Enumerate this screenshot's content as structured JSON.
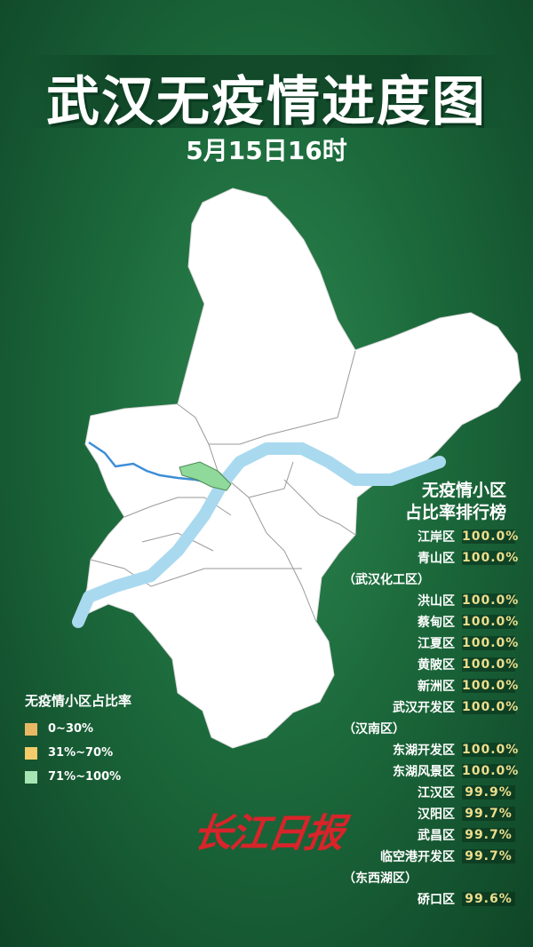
{
  "header": {
    "title": "武汉无疫情进度图",
    "date": "5月15日16时"
  },
  "colors": {
    "background": "#1c6a3c",
    "river": "#a9d9ef",
    "map_fill": "#ffffff",
    "highlight": "#8fd99a",
    "value_text": "#ecde8c",
    "logo": "#d8242a"
  },
  "ranking": {
    "title_line1": "无疫情小区",
    "title_line2": "占比率排行榜",
    "rows": [
      {
        "name": "江岸区",
        "value": "100.0%"
      },
      {
        "name": "青山区",
        "value": "100.0%"
      },
      {
        "name": "（武汉化工区）",
        "value": ""
      },
      {
        "name": "洪山区",
        "value": "100.0%"
      },
      {
        "name": "蔡甸区",
        "value": "100.0%"
      },
      {
        "name": "江夏区",
        "value": "100.0%"
      },
      {
        "name": "黄陂区",
        "value": "100.0%"
      },
      {
        "name": "新洲区",
        "value": "100.0%"
      },
      {
        "name": "武汉开发区",
        "value": "100.0%"
      },
      {
        "name": "（汉南区）",
        "value": ""
      },
      {
        "name": "东湖开发区",
        "value": "100.0%"
      },
      {
        "name": "东湖风景区",
        "value": "100.0%"
      },
      {
        "name": "江汉区",
        "value": "99.9%"
      },
      {
        "name": "汉阳区",
        "value": "99.7%"
      },
      {
        "name": "武昌区",
        "value": "99.7%"
      },
      {
        "name": "临空港开发区",
        "value": "99.7%"
      },
      {
        "name": "（东西湖区）",
        "value": ""
      },
      {
        "name": "硚口区",
        "value": "99.6%"
      }
    ]
  },
  "legend": {
    "title": "无疫情小区占比率",
    "items": [
      {
        "label": "0~30%",
        "color": "#e9b864"
      },
      {
        "label": "31%~70%",
        "color": "#f4cc6c"
      },
      {
        "label": "71%~100%",
        "color": "#a6e6b2"
      }
    ]
  },
  "logo": {
    "text": "长江日报"
  }
}
